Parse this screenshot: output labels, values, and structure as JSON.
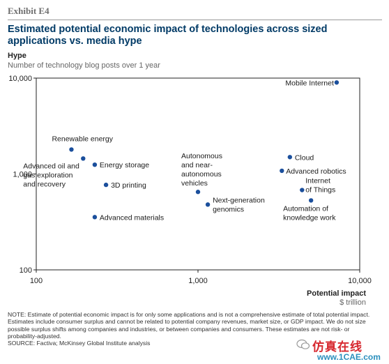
{
  "exhibit": "Exhibit E4",
  "title": "Estimated potential economic impact of technologies across sized applications vs. media hype",
  "y_axis_title": "Hype",
  "y_axis_subtitle": "Number of technology blog posts over 1 year",
  "x_axis_title": "Potential impact",
  "x_axis_unit": "$ trillion",
  "notes": [
    "NOTE: Estimate of potential economic impact is for only some applications and is not a comprehensive estimate of total potential impact. Estimates include consumer surplus and cannot be related to potential company revenues, market size, or GDP impact. We do not size possible surplus shifts among companies and industries, or between companies and consumers. These estimates are not risk- or probability-adjusted.",
    "SOURCE: Factiva; McKinsey Global Institute analysis"
  ],
  "watermark": {
    "cn": "仿真在线",
    "en": "www.1CAE.com"
  },
  "colors": {
    "point": "#1b4f9c",
    "title": "#003a66",
    "watermark_cn": "#d7282f",
    "watermark_en": "#2a8fbd"
  },
  "chart_data": {
    "type": "scatter",
    "x_scale": "log",
    "y_scale": "log",
    "xlim": [
      100,
      10000
    ],
    "ylim": [
      100,
      10000
    ],
    "x_ticks": [
      100,
      1000,
      10000
    ],
    "x_tick_labels": [
      "100",
      "1,000",
      "10,000"
    ],
    "y_ticks": [
      100,
      1000,
      10000
    ],
    "y_tick_labels": [
      "100",
      "1,000",
      "10,000"
    ],
    "grid": false,
    "points": [
      {
        "label": "Mobile Internet",
        "x": 7200,
        "y": 9000
      },
      {
        "label": "Renewable energy",
        "x": 165,
        "y": 1800
      },
      {
        "label": "Advanced oil and gas exploration and recovery",
        "x": 195,
        "y": 1450
      },
      {
        "label": "Energy storage",
        "x": 230,
        "y": 1250
      },
      {
        "label": "3D printing",
        "x": 270,
        "y": 770
      },
      {
        "label": "Advanced materials",
        "x": 230,
        "y": 355
      },
      {
        "label": "Autonomous and near-autonomous vehicles",
        "x": 1000,
        "y": 650
      },
      {
        "label": "Next-generation genomics",
        "x": 1150,
        "y": 480
      },
      {
        "label": "Cloud",
        "x": 3700,
        "y": 1500
      },
      {
        "label": "Advanced robotics",
        "x": 3300,
        "y": 1080
      },
      {
        "label": "Internet of Things",
        "x": 4400,
        "y": 680
      },
      {
        "label": "Automation of knowledge work",
        "x": 5000,
        "y": 530
      }
    ]
  }
}
